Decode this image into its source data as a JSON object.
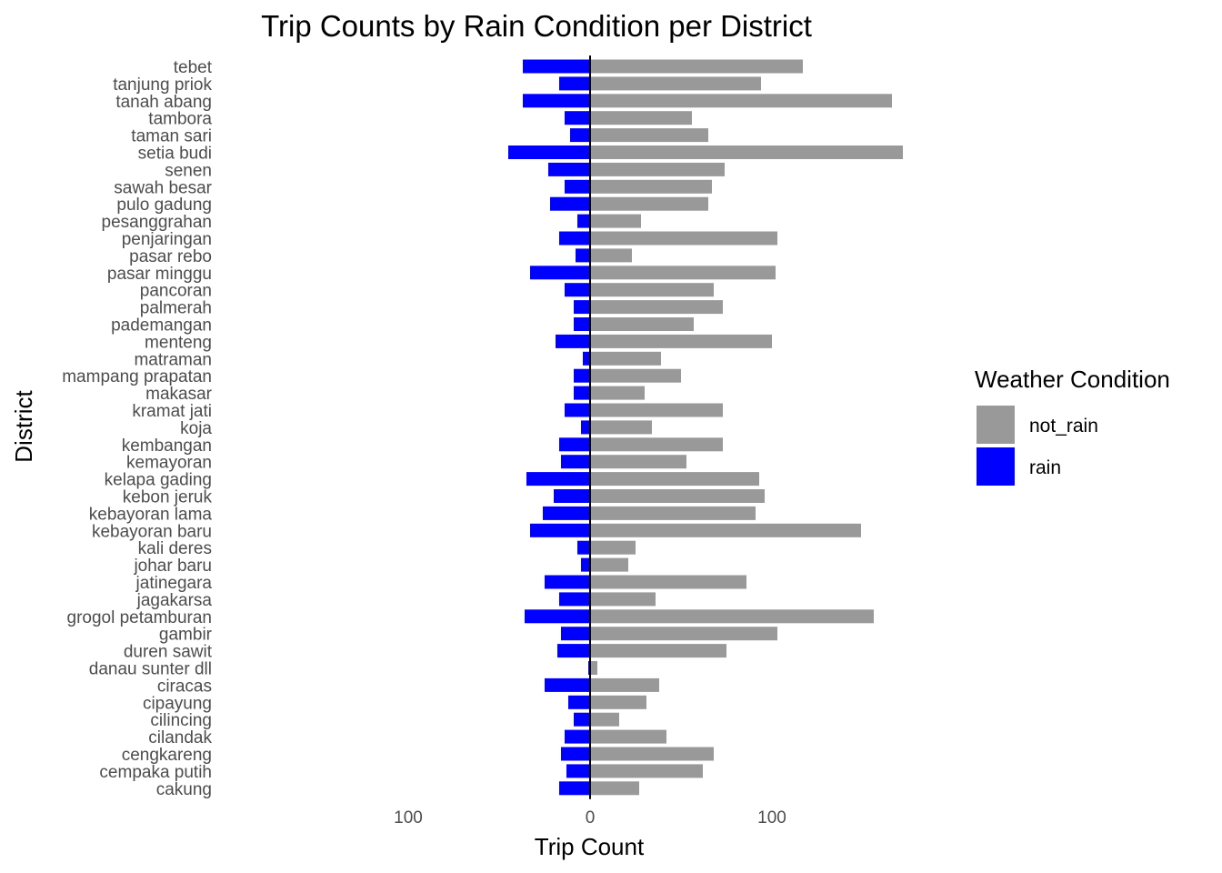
{
  "chart_data": {
    "type": "bar",
    "orientation": "horizontal-diverging",
    "title": "Trip Counts by Rain Condition per District",
    "xlabel": "Trip Count",
    "ylabel": "District",
    "xlim": [
      -100,
      150
    ],
    "x_ticks": [
      {
        "value": -100,
        "label": "100"
      },
      {
        "value": 0,
        "label": "0"
      },
      {
        "value": 100,
        "label": "100"
      }
    ],
    "grid": false,
    "legend": {
      "title": "Weather Condition",
      "placement": "right",
      "entries": [
        {
          "name": "not_rain",
          "color": "#999999"
        },
        {
          "name": "rain",
          "color": "#0000ff"
        }
      ]
    },
    "categories": [
      "tebet",
      "tanjung priok",
      "tanah abang",
      "tambora",
      "taman sari",
      "setia budi",
      "senen",
      "sawah besar",
      "pulo gadung",
      "pesanggrahan",
      "penjaringan",
      "pasar rebo",
      "pasar minggu",
      "pancoran",
      "palmerah",
      "pademangan",
      "menteng",
      "matraman",
      "mampang prapatan",
      "makasar",
      "kramat jati",
      "koja",
      "kembangan",
      "kemayoran",
      "kelapa gading",
      "kebon jeruk",
      "kebayoran lama",
      "kebayoran baru",
      "kali deres",
      "johar baru",
      "jatinegara",
      "jagakarsa",
      "grogol petamburan",
      "gambir",
      "duren sawit",
      "danau sunter dll",
      "ciracas",
      "cipayung",
      "cilincing",
      "cilandak",
      "cengkareng",
      "cempaka putih",
      "cakung"
    ],
    "series": [
      {
        "name": "not_rain",
        "color": "#999999",
        "values": [
          117,
          94,
          166,
          56,
          65,
          172,
          74,
          67,
          65,
          28,
          103,
          23,
          102,
          68,
          73,
          57,
          100,
          39,
          50,
          30,
          73,
          34,
          73,
          53,
          93,
          96,
          91,
          149,
          25,
          21,
          86,
          36,
          156,
          103,
          75,
          4,
          38,
          31,
          16,
          42,
          68,
          62,
          27
        ]
      },
      {
        "name": "rain",
        "color": "#0000ff",
        "values": [
          -37,
          -17,
          -37,
          -14,
          -11,
          -45,
          -23,
          -14,
          -22,
          -7,
          -17,
          -8,
          -33,
          -14,
          -9,
          -9,
          -19,
          -4,
          -9,
          -9,
          -14,
          -5,
          -17,
          -16,
          -35,
          -20,
          -26,
          -33,
          -7,
          -5,
          -25,
          -17,
          -36,
          -16,
          -18,
          -1,
          -25,
          -12,
          -9,
          -14,
          -16,
          -13,
          -17
        ]
      }
    ]
  }
}
